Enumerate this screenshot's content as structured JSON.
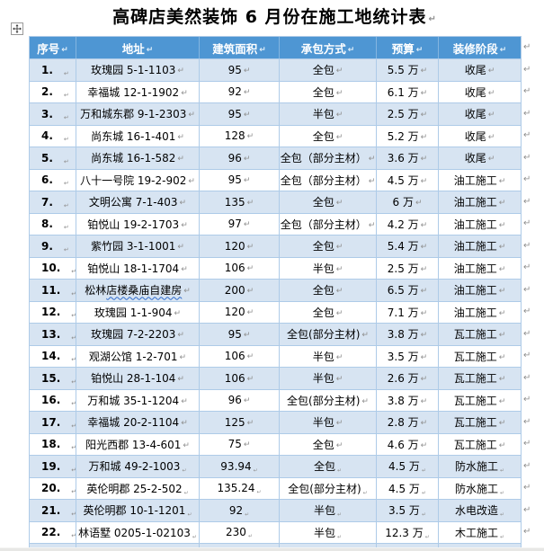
{
  "title": "高碑店美然装饰 6 月份在施工地统计表",
  "formatting_marks": {
    "cell_end": "↵",
    "row_end": "↵"
  },
  "colors": {
    "header_bg": "#4E96D3",
    "header_text": "#FFFFFF",
    "band": "#D7E4F2",
    "border": "#AECBE8",
    "mark": "#8F8F8F",
    "wave": "#2F6BCB",
    "graybar": "#E7E7E5"
  },
  "table": {
    "headers": [
      "序号",
      "地址",
      "建筑面积",
      "承包方式",
      "预算",
      "装修阶段"
    ],
    "rows": [
      {
        "no": "1.",
        "address": "玫瑰园 5-1-1103",
        "area": "95",
        "contract": "全包",
        "budget": "5.5 万",
        "stage": "收尾"
      },
      {
        "no": "2.",
        "address": "幸福城 12-1-1902",
        "area": "92",
        "contract": "全包",
        "budget": "6.1 万",
        "stage": "收尾"
      },
      {
        "no": "3.",
        "address": "万和城东郡 9-1-2303",
        "area": "95",
        "contract": "半包",
        "budget": "2.5 万",
        "stage": "收尾"
      },
      {
        "no": "4.",
        "address": "尚东城 16-1-401",
        "area": "128",
        "contract": "全包",
        "budget": "5.2 万",
        "stage": "收尾"
      },
      {
        "no": "5.",
        "address": "尚东城 16-1-582",
        "area": "96",
        "contract": "全包（部分主材）",
        "budget": "3.6 万",
        "stage": "收尾"
      },
      {
        "no": "6.",
        "address": "八十一号院 19-2-902",
        "area": "95",
        "contract": "全包（部分主材）",
        "budget": "4.5 万",
        "stage": "油工施工"
      },
      {
        "no": "7.",
        "address": "文明公寓 7-1-403",
        "area": "135",
        "contract": "全包",
        "budget": "6 万",
        "stage": "油工施工"
      },
      {
        "no": "8.",
        "address": "铂悦山 19-2-1703",
        "area": "97",
        "contract": "全包（部分主材）",
        "budget": "4.2 万",
        "stage": "油工施工"
      },
      {
        "no": "9.",
        "address": "紫竹园 3-1-1001",
        "area": "120",
        "contract": "全包",
        "budget": "5.4 万",
        "stage": "油工施工"
      },
      {
        "no": "10.",
        "address": "铂悦山 18-1-1704",
        "area": "106",
        "contract": "半包",
        "budget": "2.5 万",
        "stage": "油工施工"
      },
      {
        "no": "11.",
        "address": "松林店楼桑庙自建房",
        "wavy": "店楼桑庙自建房",
        "area": "200",
        "contract": "全包",
        "budget": "6.5 万",
        "stage": "油工施工"
      },
      {
        "no": "12.",
        "address": "玫瑰园 1-1-904",
        "area": "120",
        "contract": "全包",
        "budget": "7.1 万",
        "stage": "油工施工"
      },
      {
        "no": "13.",
        "address": "玫瑰园 7-2-2203",
        "area": "95",
        "contract": "全包(部分主材)",
        "budget": "3.8 万",
        "stage": "瓦工施工"
      },
      {
        "no": "14.",
        "address": "观湖公馆 1-2-701",
        "area": "106",
        "contract": "半包",
        "budget": "3.5 万",
        "stage": "瓦工施工"
      },
      {
        "no": "15.",
        "address": "铂悦山 28-1-104",
        "area": "106",
        "contract": "半包",
        "budget": "2.6 万",
        "stage": "瓦工施工"
      },
      {
        "no": "16.",
        "address": "万和城 35-1-1204",
        "area": "96",
        "contract": "全包(部分主材)",
        "budget": "3.8 万",
        "stage": "瓦工施工"
      },
      {
        "no": "17.",
        "address": "幸福城 20-2-1104",
        "area": "125",
        "contract": "半包",
        "budget": "2.8 万",
        "stage": "瓦工施工"
      },
      {
        "no": "18.",
        "address": "阳光西郡 13-4-601",
        "area": "75",
        "contract": "全包",
        "budget": "4.6 万",
        "stage": "瓦工施工"
      },
      {
        "no": "19.",
        "address": "万和城 49-2-1003",
        "area": "93.94",
        "contract": "全包",
        "budget": "4.5 万",
        "stage": "防水施工",
        "small_marks": true
      },
      {
        "no": "20.",
        "address": "英伦明郡 25-2-502",
        "area": "135.24",
        "contract": "全包(部分主材)",
        "budget": "4.5 万",
        "stage": "防水施工",
        "small_marks": true
      },
      {
        "no": "21.",
        "address": "英伦明郡 10-1-1201",
        "area": "92",
        "contract": "半包",
        "budget": "3.5 万",
        "stage": "水电改造",
        "small_marks": true
      },
      {
        "no": "22.",
        "address": "林语墅 0205-1-02103",
        "area": "230",
        "contract": "半包",
        "budget": "12.3 万",
        "stage": "木工施工",
        "small_marks": true
      }
    ]
  }
}
